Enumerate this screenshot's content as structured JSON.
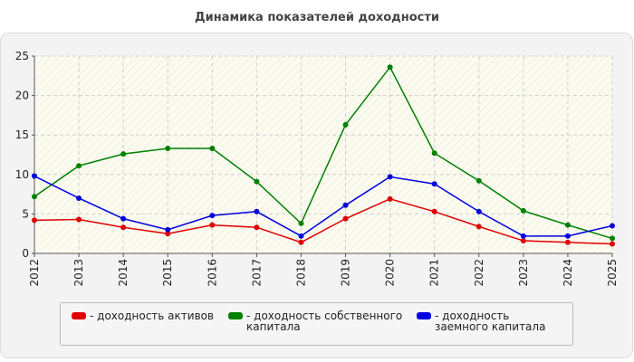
{
  "chart_data": {
    "type": "line",
    "title": "Динамика показателей доходности",
    "x": [
      "2012",
      "2013",
      "2014",
      "2015",
      "2016",
      "2017",
      "2018",
      "2019",
      "2020",
      "2021",
      "2022",
      "2023",
      "2024",
      "2025"
    ],
    "ylim": [
      0,
      25
    ],
    "yticks": [
      0,
      5,
      10,
      15,
      20,
      25
    ],
    "grid": true,
    "legend_position": "bottom",
    "series": [
      {
        "name": "- доходность активов",
        "color": "#e00000",
        "values": [
          4.2,
          4.3,
          3.3,
          2.5,
          3.6,
          3.3,
          1.4,
          4.4,
          6.9,
          5.3,
          3.4,
          1.6,
          1.4,
          1.2
        ]
      },
      {
        "name": "- доходность собственного капитала",
        "color": "#008000",
        "values": [
          7.2,
          11.1,
          12.6,
          13.3,
          13.3,
          9.1,
          3.8,
          16.3,
          23.6,
          12.7,
          9.2,
          5.4,
          3.6,
          1.9
        ]
      },
      {
        "name": "- доходность заемного капитала",
        "color": "#0000e0",
        "values": [
          9.8,
          7.0,
          4.4,
          3.0,
          4.8,
          5.3,
          2.2,
          6.1,
          9.7,
          8.8,
          5.3,
          2.2,
          2.2,
          3.5
        ]
      }
    ]
  }
}
